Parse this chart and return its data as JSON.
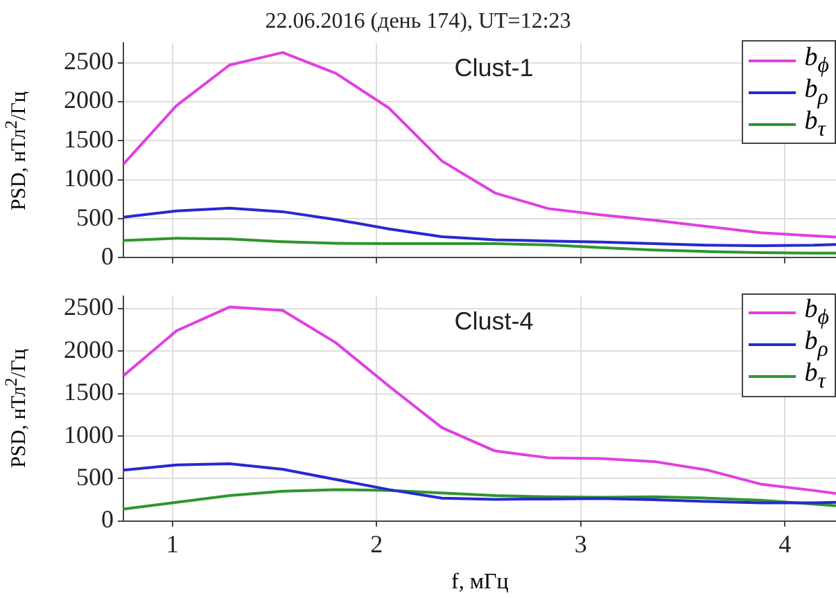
{
  "chart_data": [
    {
      "type": "line",
      "title": "22.06.2016 (день 174), UT=12:23",
      "ylabel": "PSD, нТл$^{2}$/Гц",
      "annotations": [
        "Clust-1"
      ],
      "x": [
        0.76,
        1.02,
        1.28,
        1.54,
        1.8,
        2.06,
        2.32,
        2.58,
        2.84,
        3.1,
        3.36,
        3.62,
        3.88,
        4.14,
        4.25
      ],
      "series": [
        {
          "name": "b$_{ϕ}$",
          "color": "#e040e0",
          "values": [
            1200,
            1950,
            2470,
            2630,
            2365,
            1920,
            1240,
            830,
            630,
            550,
            480,
            400,
            320,
            280,
            265
          ]
        },
        {
          "name": "b$_{ρ}$",
          "color": "#2828d0",
          "values": [
            520,
            600,
            635,
            590,
            490,
            370,
            270,
            230,
            215,
            200,
            180,
            160,
            155,
            160,
            170
          ]
        },
        {
          "name": "b$_{τ}$",
          "color": "#2e962e",
          "values": [
            220,
            250,
            240,
            205,
            185,
            180,
            180,
            180,
            165,
            130,
            100,
            80,
            65,
            60,
            60
          ]
        }
      ],
      "xlim": [
        0.76,
        4.25
      ],
      "xticks": [
        1,
        2,
        3,
        4
      ],
      "ylim": [
        0,
        2750
      ],
      "yticks": [
        0,
        500,
        1000,
        1500,
        2000,
        2500
      ],
      "grid": true,
      "legend": "top right",
      "tick_labels": "y",
      "marker": "none",
      "line_style": "solid"
    },
    {
      "type": "line",
      "xlabel": "f, мГц",
      "ylabel": "PSD, нТл$^{2}$/Гц",
      "annotations": [
        "Clust-4"
      ],
      "x": [
        0.76,
        1.02,
        1.28,
        1.54,
        1.8,
        2.06,
        2.32,
        2.58,
        2.84,
        3.1,
        3.36,
        3.62,
        3.88,
        4.14,
        4.25
      ],
      "series": [
        {
          "name": "b$_{ϕ}$",
          "color": "#e040e0",
          "values": [
            1710,
            2240,
            2520,
            2480,
            2100,
            1590,
            1100,
            825,
            745,
            735,
            700,
            600,
            435,
            360,
            325
          ]
        },
        {
          "name": "b$_{ρ}$",
          "color": "#2828d0",
          "values": [
            600,
            660,
            675,
            610,
            490,
            370,
            270,
            255,
            260,
            265,
            250,
            230,
            215,
            215,
            220
          ]
        },
        {
          "name": "b$_{τ}$",
          "color": "#2e962e",
          "values": [
            140,
            220,
            300,
            350,
            370,
            360,
            330,
            300,
            285,
            280,
            285,
            270,
            245,
            200,
            180
          ]
        }
      ],
      "xlim": [
        0.76,
        4.25
      ],
      "xticks": [
        1,
        2,
        3,
        4
      ],
      "ylim": [
        0,
        2650
      ],
      "yticks": [
        0,
        500,
        1000,
        1500,
        2000,
        2500
      ],
      "grid": true,
      "legend": "top right",
      "marker": "none",
      "line_style": "solid"
    }
  ]
}
